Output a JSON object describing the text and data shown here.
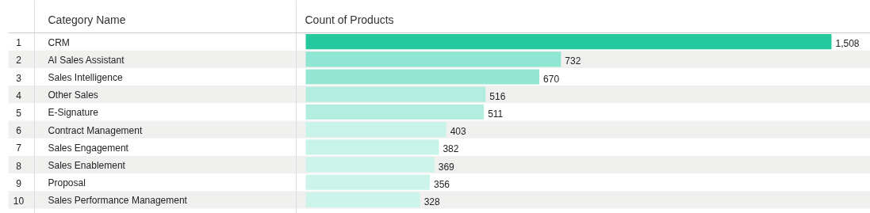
{
  "chart_data": {
    "type": "bar",
    "orientation": "horizontal",
    "ylabel": "Category Name",
    "xlabel": "Count of Products",
    "categories": [
      "CRM",
      "AI Sales Assistant",
      "Sales Intelligence",
      "Other Sales",
      "E-Signature",
      "Contract Management",
      "Sales Engagement",
      "Sales Enablement",
      "Proposal",
      "Sales Performance Management"
    ],
    "values": [
      1508,
      732,
      670,
      516,
      511,
      403,
      382,
      369,
      356,
      328
    ],
    "value_labels": [
      "1,508",
      "732",
      "670",
      "516",
      "511",
      "403",
      "382",
      "369",
      "356",
      "328"
    ],
    "colors": [
      "#26c99e",
      "#8fe6d2",
      "#93e7d3",
      "#b3eddf",
      "#b3eddf",
      "#c8f3e9",
      "#c8f3e9",
      "#cdf4ea",
      "#cdf4ea",
      "#cdf4ea"
    ],
    "annotations": [
      "1",
      "2",
      "3",
      "4",
      "5",
      "6",
      "7",
      "8",
      "9",
      "10"
    ],
    "xlim": [
      0,
      1615
    ],
    "grid": false,
    "tick_labels": false
  }
}
